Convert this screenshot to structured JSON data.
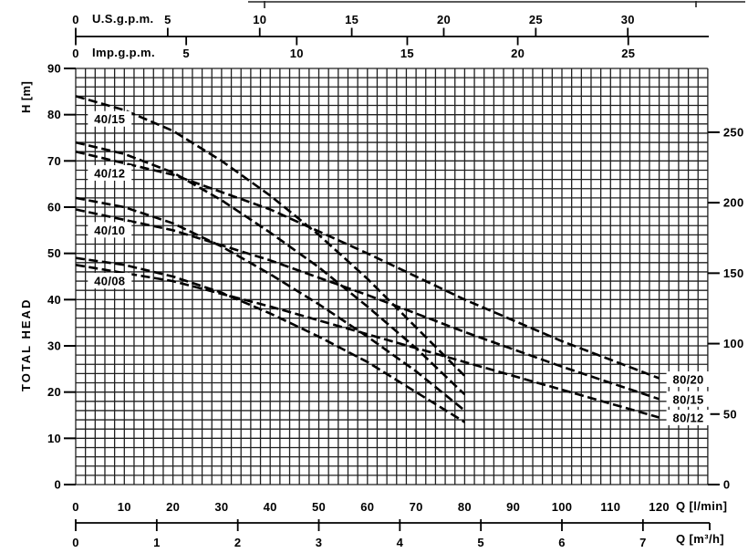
{
  "colors": {
    "background": "#ffffff",
    "ink": "#000000",
    "grid_line": "#1f1f1f"
  },
  "chart_data": {
    "type": "line",
    "axes": {
      "y_left": {
        "unit_label": "H [m]",
        "title": "TOTAL HEAD",
        "min": 0,
        "max": 90,
        "ticks": [
          0,
          10,
          20,
          30,
          40,
          50,
          60,
          70,
          80,
          90
        ]
      },
      "y_right": {
        "ticks": [
          0,
          50,
          100,
          150,
          200,
          250
        ]
      },
      "x_bottom_lmin": {
        "unit_label": "Q [l/min]",
        "min": 0,
        "max": 130,
        "ticks": [
          0,
          10,
          20,
          30,
          40,
          50,
          60,
          70,
          80,
          90,
          100,
          110,
          120
        ]
      },
      "x_bottom_m3h": {
        "unit_label": "Q [m³/h]",
        "ticks": [
          0,
          1,
          2,
          3,
          4,
          5,
          6,
          7
        ]
      },
      "x_top_usgpm": {
        "unit_label": "U.S.g.p.m.",
        "ticks": [
          0,
          5,
          10,
          15,
          20,
          25,
          30
        ]
      },
      "x_top_impgpm": {
        "unit_label": "Imp.g.p.m.",
        "ticks": [
          0,
          5,
          10,
          15,
          20,
          25
        ]
      }
    },
    "grid": {
      "minor_step_x_lmin": 2,
      "minor_step_y_m": 2,
      "visible": true
    },
    "line_style": "dashed",
    "series": [
      {
        "name": "40/15",
        "points": [
          [
            0,
            84
          ],
          [
            10,
            81
          ],
          [
            20,
            76.5
          ],
          [
            30,
            70
          ],
          [
            40,
            62.5
          ],
          [
            50,
            54
          ],
          [
            60,
            44.5
          ],
          [
            70,
            34
          ],
          [
            80,
            23.5
          ]
        ],
        "label_at": [
          7,
          79
        ]
      },
      {
        "name": "40/12",
        "points": [
          [
            0,
            74
          ],
          [
            10,
            71.5
          ],
          [
            20,
            67.5
          ],
          [
            30,
            61.5
          ],
          [
            40,
            54.5
          ],
          [
            50,
            47
          ],
          [
            60,
            38.5
          ],
          [
            70,
            29.5
          ],
          [
            80,
            19.5
          ]
        ],
        "label_at": [
          7,
          67.3
        ]
      },
      {
        "name": "40/10",
        "points": [
          [
            0,
            62
          ],
          [
            10,
            60
          ],
          [
            20,
            56.5
          ],
          [
            30,
            51.5
          ],
          [
            40,
            45.5
          ],
          [
            50,
            39
          ],
          [
            60,
            32
          ],
          [
            70,
            24.5
          ],
          [
            80,
            16
          ]
        ],
        "label_at": [
          7,
          55
        ]
      },
      {
        "name": "40/08",
        "points": [
          [
            0,
            49
          ],
          [
            10,
            47.5
          ],
          [
            20,
            45
          ],
          [
            30,
            41.5
          ],
          [
            40,
            37
          ],
          [
            50,
            32
          ],
          [
            60,
            26.5
          ],
          [
            70,
            20
          ],
          [
            80,
            13.5
          ]
        ],
        "label_at": [
          7,
          44
        ]
      },
      {
        "name": "80/20",
        "points": [
          [
            0,
            72
          ],
          [
            20,
            67
          ],
          [
            40,
            59.5
          ],
          [
            60,
            50
          ],
          [
            80,
            40
          ],
          [
            100,
            31
          ],
          [
            120,
            23
          ]
        ],
        "label_at": [
          126,
          22.7
        ]
      },
      {
        "name": "80/15",
        "points": [
          [
            0,
            59.5
          ],
          [
            20,
            55
          ],
          [
            40,
            48.5
          ],
          [
            60,
            41
          ],
          [
            80,
            33
          ],
          [
            100,
            25.5
          ],
          [
            120,
            18.5
          ]
        ],
        "label_at": [
          126,
          18.4
        ]
      },
      {
        "name": "80/12",
        "points": [
          [
            0,
            47.5
          ],
          [
            20,
            44
          ],
          [
            40,
            38.5
          ],
          [
            60,
            32.5
          ],
          [
            80,
            26.5
          ],
          [
            100,
            20.5
          ],
          [
            120,
            14.5
          ]
        ],
        "label_at": [
          126,
          14.4
        ]
      }
    ]
  }
}
